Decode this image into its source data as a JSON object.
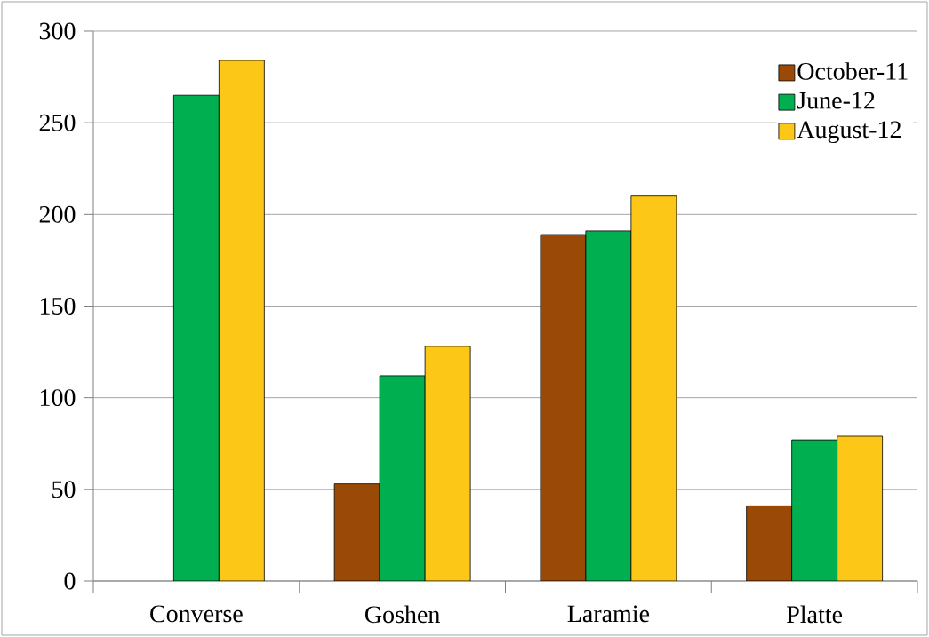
{
  "chart_data": {
    "type": "bar",
    "categories": [
      "Converse",
      "Goshen",
      "Laramie",
      "Platte"
    ],
    "series": [
      {
        "name": "October-11",
        "color": "#9a4a06",
        "values": [
          null,
          53,
          189,
          41
        ]
      },
      {
        "name": "June-12",
        "color": "#00b050",
        "values": [
          265,
          112,
          191,
          77
        ]
      },
      {
        "name": "August-12",
        "color": "#fdc718",
        "values": [
          284,
          128,
          210,
          79
        ]
      }
    ],
    "ylim": [
      0,
      300
    ],
    "yticks": [
      0,
      50,
      100,
      150,
      200,
      250,
      300
    ],
    "grid": "y",
    "legend": "top right"
  }
}
